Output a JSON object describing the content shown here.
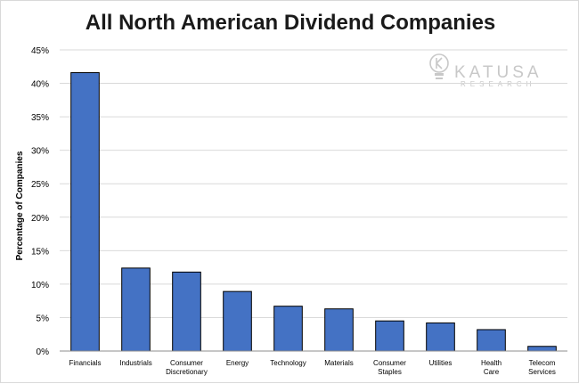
{
  "chart_data": {
    "type": "bar",
    "title": "All North American Dividend Companies",
    "xlabel": "",
    "ylabel": "Percentage of Companies",
    "categories": [
      "Financials",
      "Industrials",
      "Consumer Discretionary",
      "Energy",
      "Technology",
      "Materials",
      "Consumer Staples",
      "Utilities",
      "Health Care",
      "Telecom Services"
    ],
    "values": [
      41.6,
      12.4,
      11.8,
      8.9,
      6.7,
      6.3,
      4.5,
      4.2,
      3.2,
      0.7
    ],
    "value_unit": "%",
    "ylim": [
      0,
      45
    ],
    "yticks": [
      "0%",
      "5%",
      "10%",
      "15%",
      "20%",
      "25%",
      "30%",
      "35%",
      "40%",
      "45%"
    ],
    "grid": true,
    "legend": "none",
    "bar_color": "#4472C4"
  },
  "logo": {
    "name": "KATUSA",
    "subtitle": "RESEARCH",
    "icon": "lightbulb-k-icon"
  }
}
